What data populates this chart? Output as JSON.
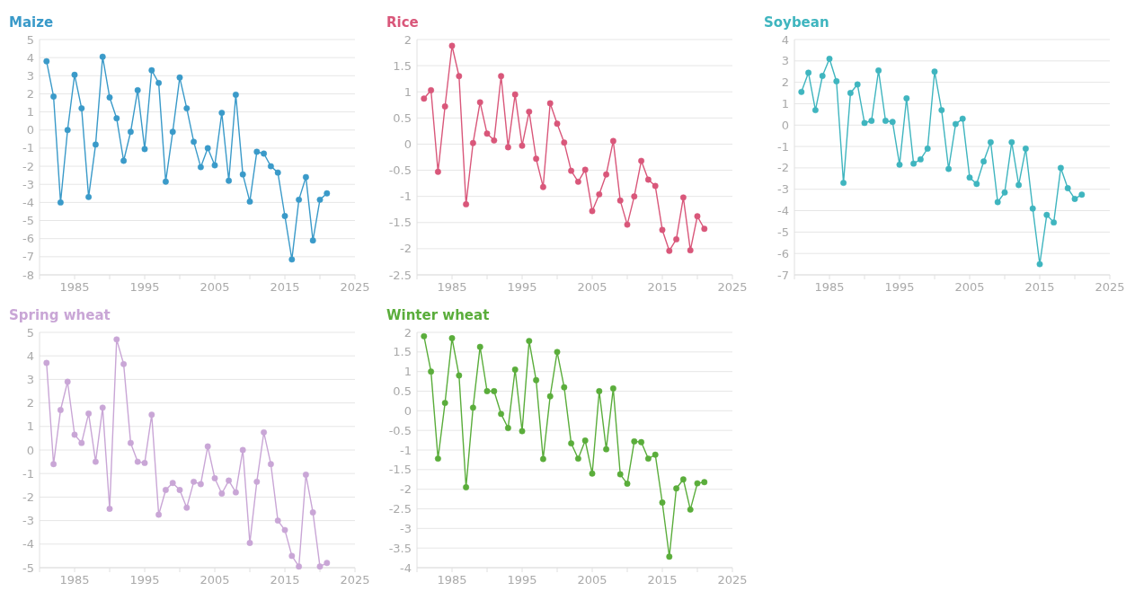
{
  "chart_data": [
    {
      "type": "line",
      "title": "Maize",
      "x": [
        1981,
        1982,
        1983,
        1984,
        1985,
        1986,
        1987,
        1988,
        1989,
        1990,
        1991,
        1992,
        1993,
        1994,
        1995,
        1996,
        1997,
        1998,
        1999,
        2000,
        2001,
        2002,
        2003,
        2004,
        2005,
        2006,
        2007,
        2008,
        2009,
        2010,
        2011,
        2012,
        2013,
        2014,
        2015,
        2016,
        2017,
        2018,
        2019,
        2020,
        2021
      ],
      "series": [
        {
          "color": "#3a9ac9",
          "values": [
            3.8,
            1.85,
            -4.0,
            0,
            3.05,
            1.2,
            -3.7,
            -0.8,
            4.05,
            1.8,
            0.65,
            -1.7,
            -0.1,
            2.2,
            -1.05,
            3.3,
            2.6,
            -2.85,
            -0.1,
            2.9,
            1.2,
            -0.65,
            -2.05,
            -1.0,
            -1.95,
            0.95,
            -2.8,
            1.95,
            -2.45,
            -3.95,
            -1.2,
            -1.3,
            -2.0,
            -2.35,
            -4.75,
            -7.15,
            -3.85,
            -2.6,
            -6.1,
            -3.85,
            -3.5
          ]
        }
      ],
      "xlim": [
        1980,
        2025
      ],
      "xticks": [
        {
          "value": 1980,
          "label": null
        },
        1985,
        {
          "value": 1990,
          "label": null
        },
        1995,
        {
          "value": 2000,
          "label": null
        },
        2005,
        {
          "value": 2010,
          "label": null
        },
        2015,
        {
          "value": 2020,
          "label": null
        },
        2025
      ],
      "ylim": [
        -8,
        5
      ],
      "yticks": [
        -8,
        -7,
        -6,
        -5,
        -4,
        -3,
        -2,
        -1,
        0,
        1,
        2,
        3,
        4,
        5
      ],
      "grid": "y",
      "marker": "circle"
    },
    {
      "type": "line",
      "title": "Rice",
      "x": [
        1981,
        1982,
        1983,
        1984,
        1985,
        1986,
        1987,
        1988,
        1989,
        1990,
        1991,
        1992,
        1993,
        1994,
        1995,
        1996,
        1997,
        1998,
        1999,
        2000,
        2001,
        2002,
        2003,
        2004,
        2005,
        2006,
        2007,
        2008,
        2009,
        2010,
        2011,
        2012,
        2013,
        2014,
        2015,
        2016,
        2017,
        2018,
        2019,
        2020,
        2021
      ],
      "series": [
        {
          "color": "#d9577a",
          "values": [
            0.87,
            1.03,
            -0.53,
            0.72,
            1.88,
            1.3,
            -1.15,
            0.02,
            0.8,
            0.2,
            0.07,
            1.3,
            -0.06,
            0.95,
            -0.03,
            0.62,
            -0.28,
            -0.82,
            0.78,
            0.39,
            0.03,
            -0.51,
            -0.72,
            -0.49,
            -1.28,
            -0.96,
            -0.58,
            0.06,
            -1.08,
            -1.54,
            -1.0,
            -0.32,
            -0.68,
            -0.8,
            -1.64,
            -2.04,
            -1.82,
            -1.02,
            -2.03,
            -1.38,
            -1.62
          ]
        }
      ],
      "xlim": [
        1980,
        2025
      ],
      "xticks": [
        {
          "value": 1980,
          "label": null
        },
        1985,
        {
          "value": 1990,
          "label": null
        },
        1995,
        {
          "value": 2000,
          "label": null
        },
        2005,
        {
          "value": 2010,
          "label": null
        },
        2015,
        {
          "value": 2020,
          "label": null
        },
        2025
      ],
      "ylim": [
        -2.5,
        2
      ],
      "yticks": [
        -2.5,
        -2,
        -1.5,
        -1,
        -0.5,
        0,
        0.5,
        1,
        1.5,
        2
      ],
      "grid": "y",
      "marker": "circle"
    },
    {
      "type": "line",
      "title": "Soybean",
      "x": [
        1981,
        1982,
        1983,
        1984,
        1985,
        1986,
        1987,
        1988,
        1989,
        1990,
        1991,
        1992,
        1993,
        1994,
        1995,
        1996,
        1997,
        1998,
        1999,
        2000,
        2001,
        2002,
        2003,
        2004,
        2005,
        2006,
        2007,
        2008,
        2009,
        2010,
        2011,
        2012,
        2013,
        2014,
        2015,
        2016,
        2017,
        2018,
        2019,
        2020,
        2021
      ],
      "series": [
        {
          "color": "#3fb5bf",
          "values": [
            1.55,
            2.45,
            0.7,
            2.3,
            3.1,
            2.05,
            -2.7,
            1.5,
            1.9,
            0.1,
            0.2,
            2.55,
            0.2,
            0.15,
            -1.85,
            1.25,
            -1.8,
            -1.6,
            -1.1,
            2.5,
            0.7,
            -2.05,
            0.05,
            0.3,
            -2.45,
            -2.75,
            -1.7,
            -0.8,
            -3.6,
            -3.15,
            -0.8,
            -2.8,
            -1.1,
            -3.9,
            -6.5,
            -4.2,
            -4.55,
            -2.0,
            -2.95,
            -3.45,
            -3.25
          ]
        }
      ],
      "xlim": [
        1980,
        2025
      ],
      "xticks": [
        {
          "value": 1980,
          "label": null
        },
        1985,
        {
          "value": 1990,
          "label": null
        },
        1995,
        {
          "value": 2000,
          "label": null
        },
        2005,
        {
          "value": 2010,
          "label": null
        },
        2015,
        {
          "value": 2020,
          "label": null
        },
        2025
      ],
      "ylim": [
        -7,
        4
      ],
      "yticks": [
        -7,
        -6,
        -5,
        -4,
        -3,
        -2,
        -1,
        0,
        1,
        2,
        3,
        4
      ],
      "grid": "y",
      "marker": "circle"
    },
    {
      "type": "line",
      "title": "Spring wheat",
      "x": [
        1981,
        1982,
        1983,
        1984,
        1985,
        1986,
        1987,
        1988,
        1989,
        1990,
        1991,
        1992,
        1993,
        1994,
        1995,
        1996,
        1997,
        1998,
        1999,
        2000,
        2001,
        2002,
        2003,
        2004,
        2005,
        2006,
        2007,
        2008,
        2009,
        2010,
        2011,
        2012,
        2013,
        2014,
        2015,
        2016,
        2017,
        2018,
        2019,
        2020,
        2021
      ],
      "series": [
        {
          "color": "#c9a6d6",
          "values": [
            3.7,
            -0.6,
            1.7,
            2.9,
            0.65,
            0.3,
            1.55,
            -0.5,
            1.8,
            -2.5,
            4.7,
            3.65,
            0.3,
            -0.5,
            -0.55,
            1.5,
            -2.75,
            -1.7,
            -1.4,
            -1.7,
            -2.45,
            -1.35,
            -1.45,
            0.15,
            -1.2,
            -1.85,
            -1.3,
            -1.8,
            0.0,
            -3.95,
            -1.35,
            0.75,
            -0.6,
            -3.0,
            -3.4,
            -4.5,
            -4.95,
            -1.05,
            -2.65,
            -4.95,
            -4.8
          ]
        }
      ],
      "xlim": [
        1980,
        2025
      ],
      "xticks": [
        {
          "value": 1980,
          "label": null
        },
        1985,
        {
          "value": 1990,
          "label": null
        },
        1995,
        {
          "value": 2000,
          "label": null
        },
        2005,
        {
          "value": 2010,
          "label": null
        },
        2015,
        {
          "value": 2020,
          "label": null
        },
        2025
      ],
      "ylim": [
        -5,
        5
      ],
      "yticks": [
        -5,
        -4,
        -3,
        -2,
        -1,
        0,
        1,
        2,
        3,
        4,
        5
      ],
      "grid": "y",
      "marker": "circle"
    },
    {
      "type": "line",
      "title": "Winter wheat",
      "x": [
        1981,
        1982,
        1983,
        1984,
        1985,
        1986,
        1987,
        1988,
        1989,
        1990,
        1991,
        1992,
        1993,
        1994,
        1995,
        1996,
        1997,
        1998,
        1999,
        2000,
        2001,
        2002,
        2003,
        2004,
        2005,
        2006,
        2007,
        2008,
        2009,
        2010,
        2011,
        2012,
        2013,
        2014,
        2015,
        2016,
        2017,
        2018,
        2019,
        2020,
        2021
      ],
      "series": [
        {
          "color": "#5aad3b",
          "values": [
            1.9,
            1.0,
            -1.22,
            0.2,
            1.85,
            0.9,
            -1.95,
            0.08,
            1.63,
            0.5,
            0.5,
            -0.08,
            -0.44,
            1.05,
            -0.52,
            1.78,
            0.78,
            -1.23,
            0.37,
            1.5,
            0.6,
            -0.83,
            -1.22,
            -0.76,
            -1.6,
            0.5,
            -0.98,
            0.57,
            -1.62,
            -1.86,
            -0.78,
            -0.8,
            -1.22,
            -1.12,
            -2.34,
            -3.72,
            -1.98,
            -1.75,
            -2.52,
            -1.85,
            -1.82
          ]
        }
      ],
      "xlim": [
        1980,
        2025
      ],
      "xticks": [
        {
          "value": 1980,
          "label": null
        },
        1985,
        {
          "value": 1990,
          "label": null
        },
        1995,
        {
          "value": 2000,
          "label": null
        },
        2005,
        {
          "value": 2010,
          "label": null
        },
        2015,
        {
          "value": 2020,
          "label": null
        },
        2025
      ],
      "ylim": [
        -4,
        2
      ],
      "yticks": [
        -4,
        -3.5,
        -3,
        -2.5,
        -2,
        -1.5,
        -1,
        -0.5,
        0,
        0.5,
        1,
        1.5,
        2
      ],
      "grid": "y",
      "marker": "circle"
    }
  ]
}
